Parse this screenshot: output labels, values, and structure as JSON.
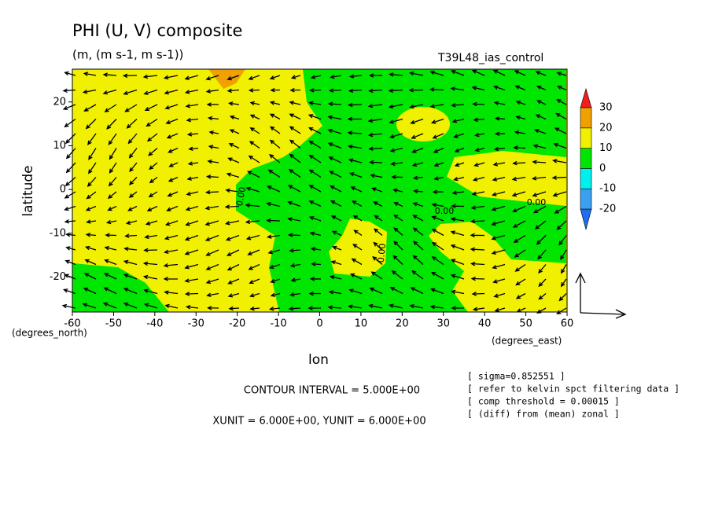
{
  "chart_data": {
    "type": "contour",
    "title": "PHI (U, V) composite",
    "subtitle": "(m, (m s-1, m s-1))",
    "run_label": "T39L48_ias_control",
    "x_label": "lon",
    "y_label": "latitude",
    "x_unit_label": "(degrees_east)",
    "y_unit_label": "(degrees_north)",
    "xlim": [
      -60,
      60
    ],
    "ylim": [
      -28,
      27.5
    ],
    "xticks": [
      -60,
      -50,
      -40,
      -30,
      -20,
      -10,
      0,
      10,
      20,
      30,
      40,
      50,
      60
    ],
    "yticks": [
      -20,
      -10,
      0,
      10,
      20
    ],
    "contour_line_labels": [
      "0.00",
      "0.00",
      "0.00",
      "0.00"
    ],
    "colorbar": {
      "levels": [
        -20,
        -10,
        0,
        10,
        20,
        30
      ],
      "colors": [
        "#1e6ef0",
        "#3ca0f0",
        "#00f0f0",
        "#00e600",
        "#f0f000",
        "#f0a000",
        "#f01e1e"
      ]
    },
    "contour_interval_label": "CONTOUR INTERVAL = 5.000E+00",
    "vector_unit_label": "XUNIT = 6.000E+00, YUNIT = 6.000E+00",
    "notes": [
      "[ sigma=0.852551 ]",
      "[ refer to kelvin spct filtering data ]",
      "[ comp threshold = 0.00015 ]",
      "[ (diff) from (mean) zonal ]"
    ]
  }
}
